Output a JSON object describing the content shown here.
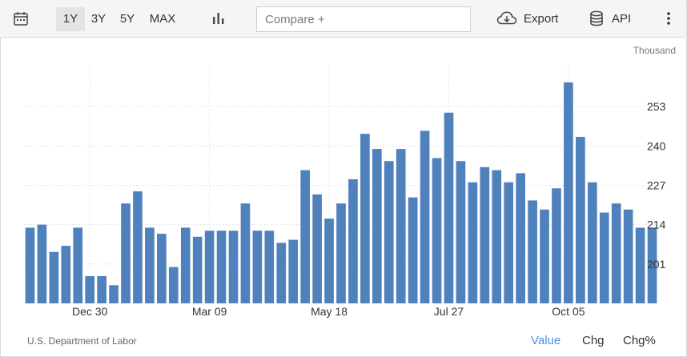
{
  "toolbar": {
    "ranges": [
      "1Y",
      "3Y",
      "5Y",
      "MAX"
    ],
    "active_range": "1Y",
    "compare_placeholder": "Compare +",
    "export_label": "Export",
    "api_label": "API"
  },
  "footer": {
    "source": "U.S. Department of Labor",
    "tabs": [
      "Value",
      "Chg",
      "Chg%"
    ],
    "active_tab": "Value"
  },
  "colors": {
    "bar": "#4f81bd",
    "accent": "#4a90d9"
  },
  "chart_data": {
    "type": "bar",
    "unit_label": "Thousand",
    "ylim": [
      188,
      266
    ],
    "yticks": [
      201,
      214,
      227,
      240,
      253
    ],
    "xtick_labels": [
      {
        "label": "Dec 30",
        "index": 5
      },
      {
        "label": "Mar 09",
        "index": 15
      },
      {
        "label": "May 18",
        "index": 25
      },
      {
        "label": "Jul 27",
        "index": 35
      },
      {
        "label": "Oct 05",
        "index": 45
      }
    ],
    "grid": true,
    "values": [
      213,
      214,
      205,
      207,
      213,
      197,
      197,
      194,
      221,
      225,
      213,
      211,
      200,
      213,
      210,
      212,
      212,
      212,
      221,
      212,
      212,
      208,
      209,
      232,
      224,
      216,
      221,
      229,
      244,
      239,
      235,
      239,
      223,
      245,
      236,
      251,
      235,
      228,
      233,
      232,
      228,
      231,
      222,
      219,
      226,
      261,
      243,
      228,
      218,
      221,
      219,
      213,
      213
    ]
  }
}
